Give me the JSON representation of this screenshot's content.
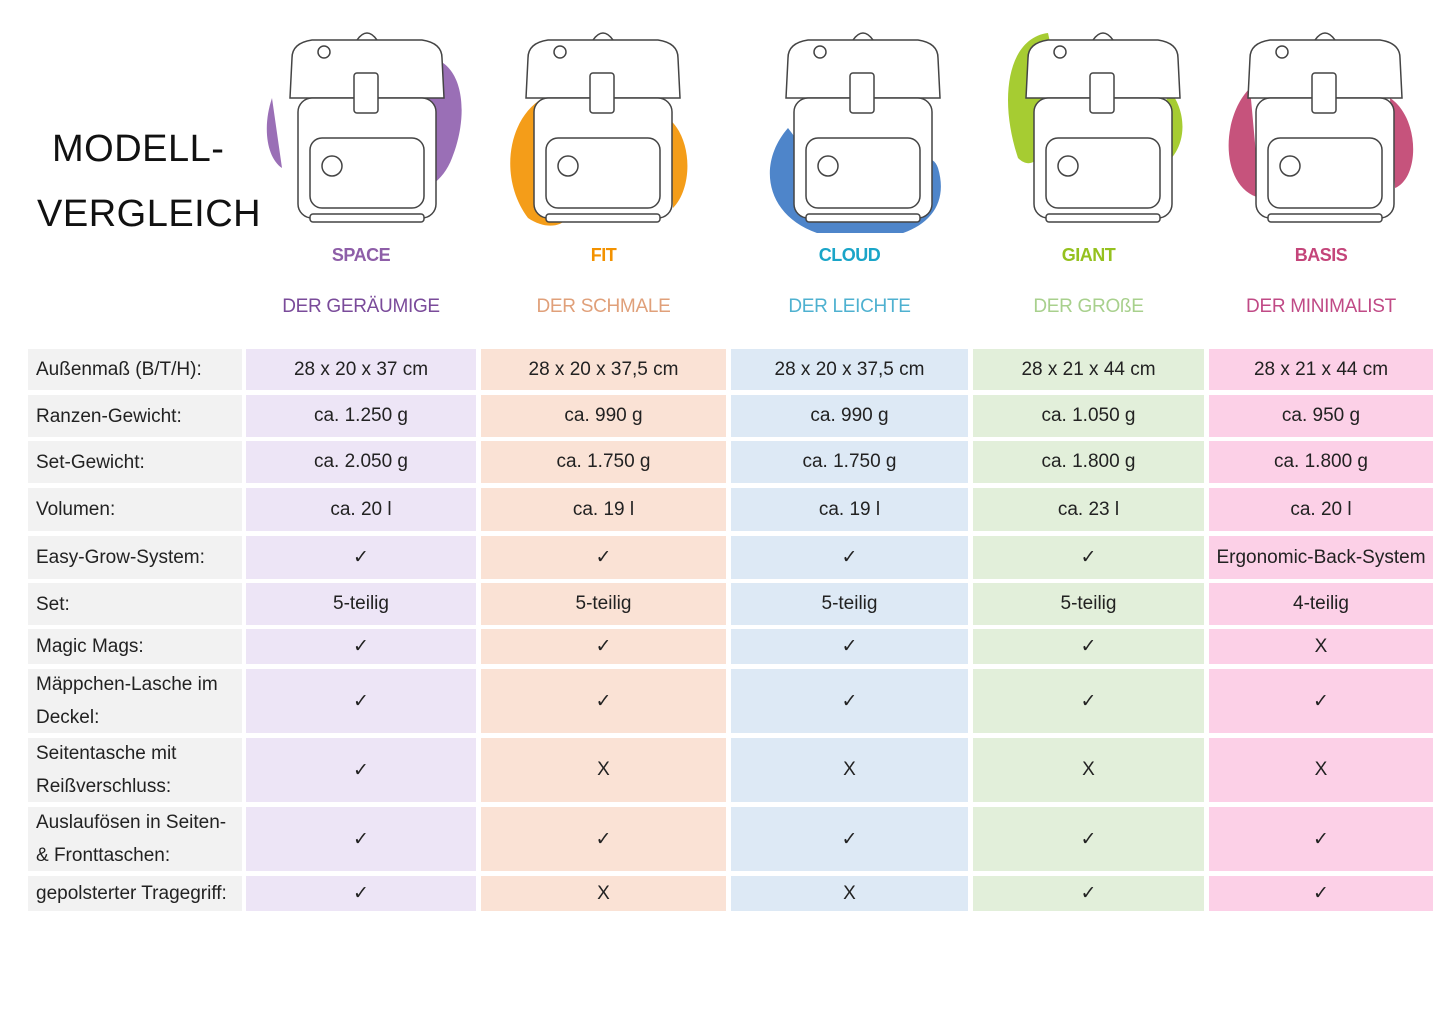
{
  "title": {
    "line1": "MODELL-",
    "line2": "VERGLEICH"
  },
  "models": [
    {
      "name": "SPACE",
      "subtitle": "DER  GERÄUMIGE",
      "color": "#8e5ea8",
      "sub_color": "#7a4b9a",
      "cell_bg": "#ede5f6",
      "blob": "#8f5fae"
    },
    {
      "name": "FIT",
      "subtitle": "DER SCHMALE",
      "color": "#f39200",
      "sub_color": "#e0a07a",
      "cell_bg": "#fae2d5",
      "blob": "#f39200"
    },
    {
      "name": "CLOUD",
      "subtitle": "DER LEICHTE",
      "color": "#1aa5c8",
      "sub_color": "#4fb1d0",
      "cell_bg": "#dde9f5",
      "blob": "#3b78c4"
    },
    {
      "name": "GIANT",
      "subtitle": "DER GROßE",
      "color": "#95c11f",
      "sub_color": "#a8d08d",
      "cell_bg": "#e2efda",
      "blob": "#9cc71c"
    },
    {
      "name": "BASIS",
      "subtitle": "DER MINIMALIST",
      "color": "#c4457a",
      "sub_color": "#c04a86",
      "cell_bg": "#fcd0e7",
      "blob": "#c0406e"
    }
  ],
  "rows": [
    {
      "label": "Außenmaß (B/T/H):",
      "values": [
        "28 x 20 x 37 cm",
        "28 x 20 x 37,5 cm",
        "28 x 20 x 37,5 cm",
        "28 x 21 x 44 cm",
        "28 x 21 x 44 cm"
      ]
    },
    {
      "label": "Ranzen-Gewicht:",
      "values": [
        "ca. 1.250 g",
        "ca. 990 g",
        "ca. 990 g",
        "ca. 1.050 g",
        "ca. 950 g"
      ]
    },
    {
      "label": "Set-Gewicht:",
      "values": [
        "ca. 2.050 g",
        "ca. 1.750 g",
        "ca. 1.750 g",
        "ca. 1.800 g",
        "ca. 1.800 g"
      ]
    },
    {
      "label": "Volumen:",
      "values": [
        "ca. 20 l",
        "ca. 19 l",
        "ca. 19 l",
        "ca. 23 l",
        "ca. 20 l"
      ]
    },
    {
      "label": "Easy-Grow-System:",
      "values": [
        "✓",
        "✓",
        "✓",
        "✓",
        "Ergonomic-Back-System"
      ]
    },
    {
      "label": "Set:",
      "values": [
        "5-teilig",
        "5-teilig",
        "5-teilig",
        "5-teilig",
        "4-teilig"
      ]
    },
    {
      "label": "Magic Mags:",
      "values": [
        "✓",
        "✓",
        "✓",
        "✓",
        "X"
      ]
    },
    {
      "label": "Mäppchen-Lasche im Deckel:",
      "values": [
        "✓",
        "✓",
        "✓",
        "✓",
        "✓"
      ]
    },
    {
      "label": "Seitentasche mit Reißverschluss:",
      "values": [
        "✓",
        "X",
        "X",
        "X",
        "X"
      ]
    },
    {
      "label": "Auslaufösen in Seiten- & Fronttaschen:",
      "values": [
        "✓",
        "✓",
        "✓",
        "✓",
        "✓"
      ]
    },
    {
      "label": "gepolsterter Tragegriff:",
      "values": [
        "✓",
        "X",
        "X",
        "✓",
        "✓"
      ]
    }
  ]
}
